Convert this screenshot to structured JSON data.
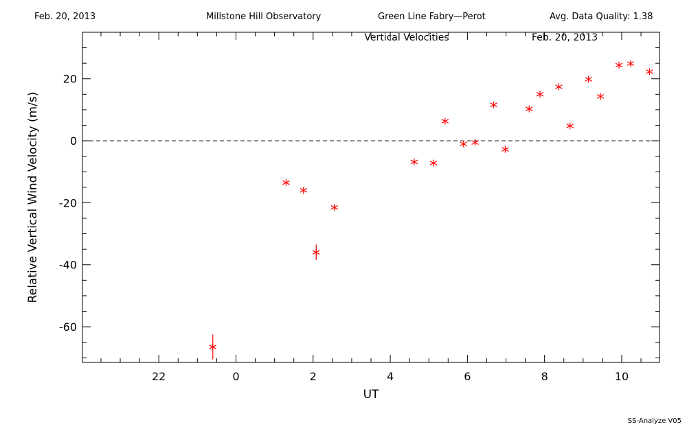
{
  "header": {
    "date": "Feb. 20, 2013",
    "observatory": "Millstone Hill Observatory",
    "instrument": "Green Line Fabry—Perot",
    "quality": "Avg. Data Quality: 1.38"
  },
  "footer": {
    "version": "SS-Analyze V05"
  },
  "chart_data": {
    "type": "scatter",
    "title": "Vertical Velocities",
    "subtitle": "Feb. 20, 2013",
    "xlabel": "UT",
    "ylabel": "Relative Vertical Wind Velocity (m/s)",
    "xlim": [
      -1.98,
      12.98
    ],
    "ylim": [
      -71.5,
      35
    ],
    "x_tick_values": [
      0,
      2,
      4,
      6,
      8,
      10,
      12
    ],
    "x_tick_labels": [
      "22",
      "0",
      "2",
      "4",
      "6",
      "8",
      "10"
    ],
    "y_ticks": [
      -60,
      -40,
      -20,
      0,
      20
    ],
    "zero_line": 0,
    "marker_color": "#ff0000",
    "points": [
      {
        "x": 1.4,
        "y": -66.5,
        "err": 4
      },
      {
        "x": 3.3,
        "y": -13.5,
        "err": 0
      },
      {
        "x": 3.75,
        "y": -16,
        "err": 0
      },
      {
        "x": 4.08,
        "y": -36,
        "err": 2.5
      },
      {
        "x": 4.55,
        "y": -21.5,
        "err": 0
      },
      {
        "x": 6.62,
        "y": -6.8,
        "err": 0
      },
      {
        "x": 7.12,
        "y": -7.2,
        "err": 0
      },
      {
        "x": 7.42,
        "y": 6.3,
        "err": 0
      },
      {
        "x": 7.9,
        "y": -1,
        "err": 0
      },
      {
        "x": 8.2,
        "y": -0.6,
        "err": 0
      },
      {
        "x": 8.68,
        "y": 11.6,
        "err": 0
      },
      {
        "x": 8.98,
        "y": -2.8,
        "err": 0
      },
      {
        "x": 9.6,
        "y": 10.3,
        "err": 0
      },
      {
        "x": 9.88,
        "y": 15,
        "err": 0
      },
      {
        "x": 10.37,
        "y": 17.4,
        "err": 0
      },
      {
        "x": 10.66,
        "y": 4.8,
        "err": 0
      },
      {
        "x": 11.14,
        "y": 19.8,
        "err": 0
      },
      {
        "x": 11.45,
        "y": 14.3,
        "err": 0
      },
      {
        "x": 11.93,
        "y": 24.4,
        "err": 0
      },
      {
        "x": 12.23,
        "y": 24.9,
        "err": 0
      },
      {
        "x": 12.72,
        "y": 22.3,
        "err": 0
      }
    ]
  }
}
